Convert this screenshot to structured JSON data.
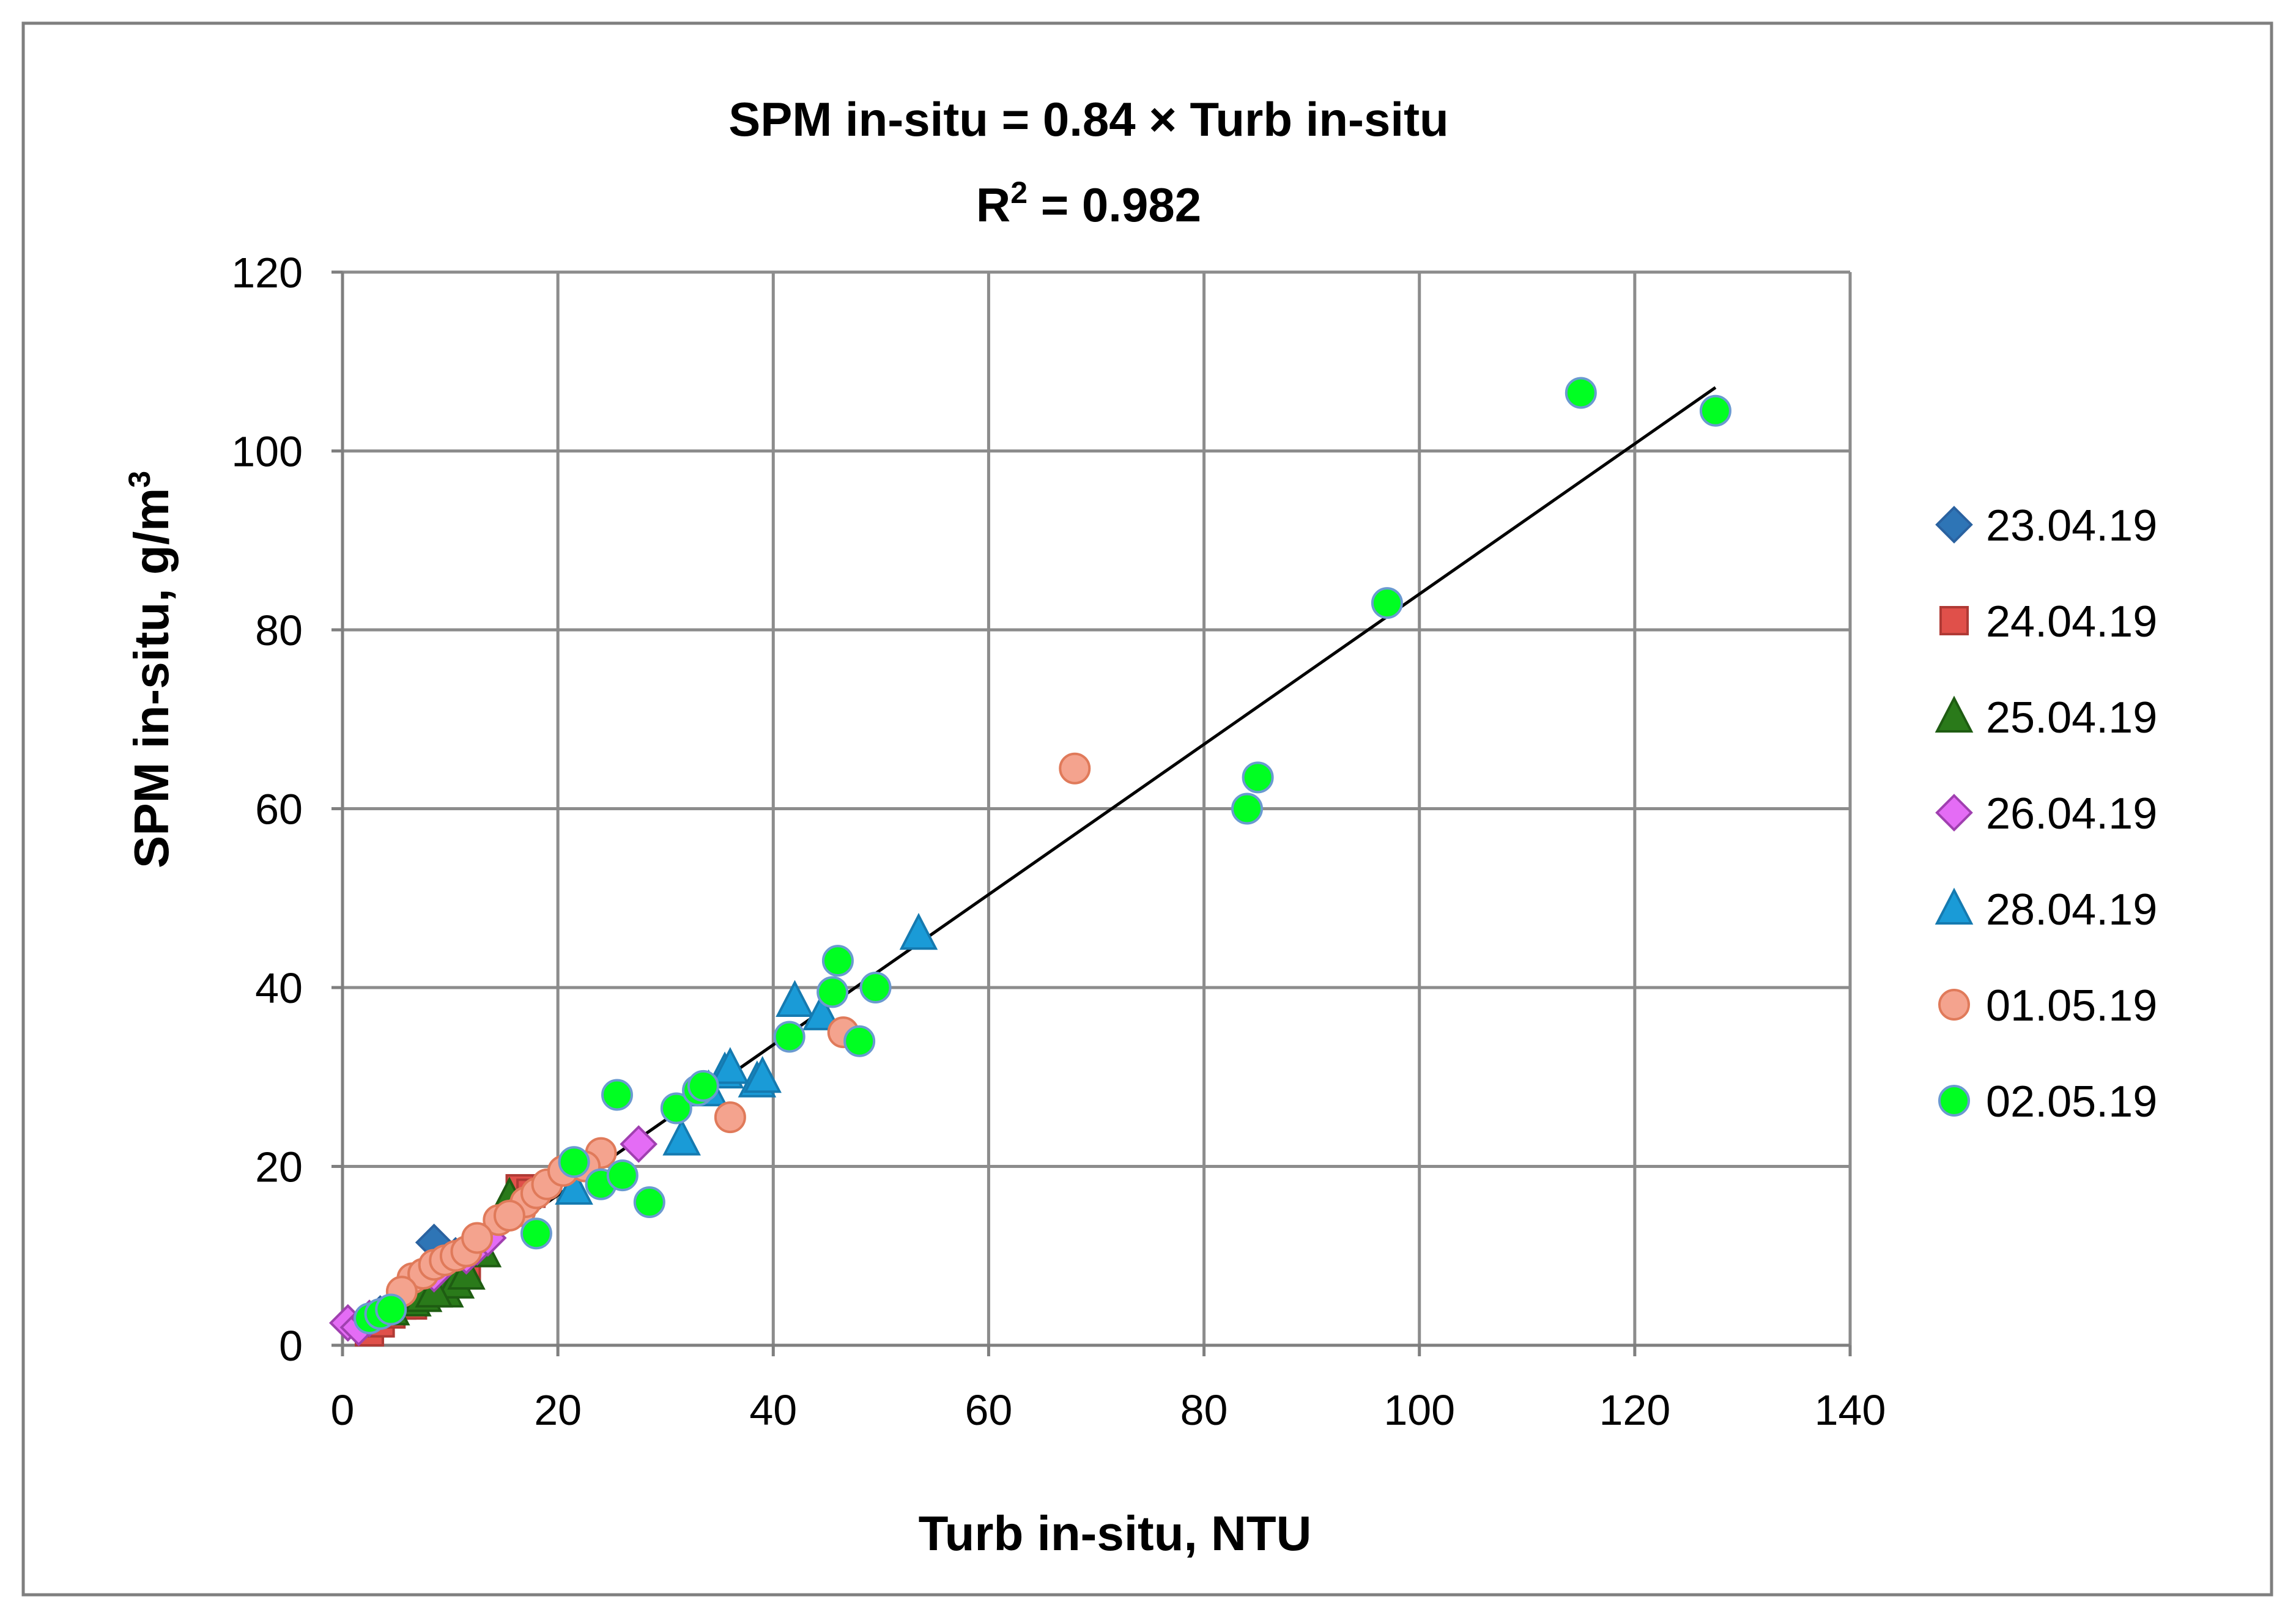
{
  "chart_data": {
    "type": "scatter",
    "title": "SPM in-situ = 0.84 × Turb in-situ",
    "subtitle": {
      "prefix": "R",
      "superscript": "2",
      "suffix": " = 0.982"
    },
    "xlabel": "Turb in-situ, NTU",
    "ylabel": {
      "prefix": "SPM in-situ, g/m",
      "superscript": "3"
    },
    "xlim": [
      0,
      140
    ],
    "ylim": [
      0,
      120
    ],
    "xticks": [
      "0",
      "20",
      "40",
      "60",
      "80",
      "100",
      "120",
      "140"
    ],
    "yticks": [
      "0",
      "20",
      "40",
      "60",
      "80",
      "100",
      "120"
    ],
    "grid": true,
    "legend_position": "right",
    "trendline": {
      "slope": 0.84,
      "x_start": 1.5,
      "x_end": 127.5,
      "color": "#000000"
    },
    "series": [
      {
        "name": "23.04.19",
        "marker": "diamond",
        "fill": "#2e75b6",
        "stroke": "#2a62a0",
        "points": [
          [
            8.5,
            11.5
          ],
          [
            9.5,
            9
          ],
          [
            10.5,
            10
          ],
          [
            11.5,
            9.5
          ],
          [
            12.5,
            11
          ],
          [
            7.5,
            6
          ],
          [
            6.5,
            5
          ],
          [
            4.5,
            4
          ],
          [
            3.5,
            3.5
          ],
          [
            2.5,
            3
          ]
        ]
      },
      {
        "name": "24.04.19",
        "marker": "square",
        "fill": "#e0504a",
        "stroke": "#b03a35",
        "points": [
          [
            16.5,
            17.5
          ],
          [
            17.5,
            17
          ],
          [
            2.5,
            1.5
          ],
          [
            3.5,
            2.5
          ],
          [
            4.5,
            3.5
          ],
          [
            5.5,
            4.5
          ],
          [
            7.5,
            5.5
          ],
          [
            8.5,
            6.5
          ],
          [
            10.5,
            7.5
          ],
          [
            11.5,
            8.5
          ],
          [
            6.5,
            4.5
          ]
        ]
      },
      {
        "name": "25.04.19",
        "marker": "triangle",
        "fill": "#2a7a1a",
        "stroke": "#1e5c12",
        "points": [
          [
            9.5,
            6
          ],
          [
            10.5,
            7
          ],
          [
            11.5,
            8
          ],
          [
            13,
            10.5
          ],
          [
            15.5,
            16.5
          ],
          [
            4.5,
            4
          ],
          [
            6.5,
            5
          ],
          [
            7.5,
            5.5
          ],
          [
            8.5,
            6
          ]
        ]
      },
      {
        "name": "26.04.19",
        "marker": "diamond",
        "fill": "#e46cf5",
        "stroke": "#a040b0",
        "points": [
          [
            0.5,
            2.5
          ],
          [
            1.5,
            2
          ],
          [
            2.5,
            3
          ],
          [
            8.5,
            8
          ],
          [
            11.5,
            10
          ],
          [
            12.5,
            11
          ],
          [
            13.5,
            12
          ],
          [
            27.5,
            22.5
          ]
        ]
      },
      {
        "name": "28.04.19",
        "marker": "triangle",
        "fill": "#1a9bd7",
        "stroke": "#157ab0",
        "points": [
          [
            21.5,
            17.5
          ],
          [
            31.5,
            23
          ],
          [
            34,
            28.5
          ],
          [
            35.5,
            30.5
          ],
          [
            38.5,
            29.5
          ],
          [
            39,
            30
          ],
          [
            42,
            38.5
          ],
          [
            44.5,
            37
          ],
          [
            53.5,
            46
          ],
          [
            36,
            31
          ]
        ]
      },
      {
        "name": "01.05.19",
        "marker": "circle",
        "fill": "#f4a38e",
        "stroke": "#e07a5a",
        "points": [
          [
            6.5,
            7.5
          ],
          [
            7.5,
            8
          ],
          [
            8.5,
            9
          ],
          [
            9.5,
            9.5
          ],
          [
            10.5,
            10
          ],
          [
            11.5,
            10.5
          ],
          [
            5.5,
            6
          ],
          [
            14.5,
            14
          ],
          [
            16.5,
            15
          ],
          [
            17,
            16
          ],
          [
            18,
            17
          ],
          [
            19,
            18
          ],
          [
            20.5,
            19.5
          ],
          [
            24,
            21.5
          ],
          [
            36,
            25.5
          ],
          [
            46.5,
            35
          ],
          [
            68,
            64.5
          ],
          [
            12.5,
            12
          ],
          [
            15.5,
            14.5
          ],
          [
            22.5,
            20
          ]
        ]
      },
      {
        "name": "02.05.19",
        "marker": "circle",
        "fill": "#00ff22",
        "stroke": "#6a9ad0",
        "points": [
          [
            2.5,
            3
          ],
          [
            3.5,
            3.5
          ],
          [
            4.5,
            4
          ],
          [
            18,
            12.5
          ],
          [
            21.5,
            20.5
          ],
          [
            24,
            18
          ],
          [
            25.5,
            28
          ],
          [
            26,
            19
          ],
          [
            28.5,
            16
          ],
          [
            31,
            26.5
          ],
          [
            33,
            28.5
          ],
          [
            33.5,
            29
          ],
          [
            41.5,
            34.5
          ],
          [
            45.5,
            39.5
          ],
          [
            46,
            43
          ],
          [
            48,
            34
          ],
          [
            49.5,
            40
          ],
          [
            84,
            60
          ],
          [
            85,
            63.5
          ],
          [
            97,
            83
          ],
          [
            115,
            106.5
          ],
          [
            127.5,
            104.5
          ]
        ]
      }
    ]
  },
  "colors": {
    "grid": "#8c8c8c",
    "frame": "#7f7f7f",
    "axis": "#7f7f7f"
  }
}
